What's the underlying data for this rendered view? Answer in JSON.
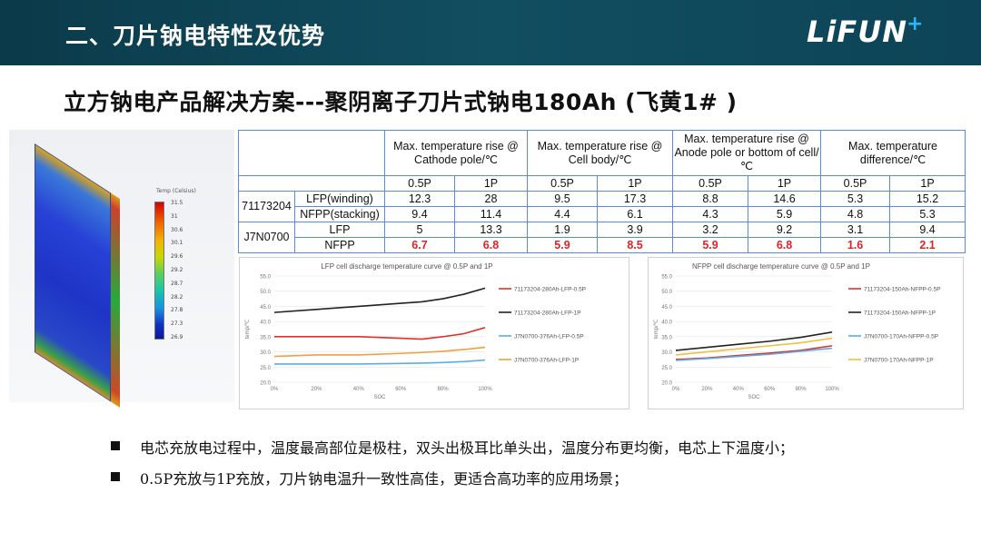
{
  "header": {
    "title": "二、刀片钠电特性及优势",
    "logo_text": "LiFUN",
    "logo_plus": "+"
  },
  "subtitle": "立方钠电产品解决方案---聚阴离子刀片式钠电180Ah (飞黄1# )",
  "simulation": {
    "legend_title": "Temp (Celsius)",
    "legend_ticks": [
      "31.5",
      "31",
      "30.6",
      "30.1",
      "29.6",
      "29.2",
      "28.7",
      "28.2",
      "27.8",
      "27.3",
      "26.9"
    ]
  },
  "table": {
    "headers": [
      "Max. temperature rise @ Cathode pole/℃",
      "Max. temperature rise @ Cell body/℃",
      "Max. temperature rise @ Anode pole or bottom of cell/℃",
      "Max. temperature difference/℃"
    ],
    "rates": [
      "0.5P",
      "1P",
      "0.5P",
      "1P",
      "0.5P",
      "1P",
      "0.5P",
      "1P"
    ],
    "groups": [
      {
        "model": "71173204",
        "rows": [
          {
            "type": "LFP(winding)",
            "values": [
              "12.3",
              "28",
              "9.5",
              "17.3",
              "8.8",
              "14.6",
              "5.3",
              "15.2"
            ],
            "highlight": false
          },
          {
            "type": "NFPP(stacking)",
            "values": [
              "9.4",
              "11.4",
              "4.4",
              "6.1",
              "4.3",
              "5.9",
              "4.8",
              "5.3"
            ],
            "highlight": false
          }
        ]
      },
      {
        "model": "J7N0700",
        "rows": [
          {
            "type": "LFP",
            "values": [
              "5",
              "13.3",
              "1.9",
              "3.9",
              "3.2",
              "9.2",
              "3.1",
              "9.4"
            ],
            "highlight": false
          },
          {
            "type": "NFPP",
            "values": [
              "6.7",
              "6.8",
              "5.9",
              "8.5",
              "5.9",
              "6.8",
              "1.6",
              "2.1"
            ],
            "highlight": true
          }
        ]
      }
    ]
  },
  "chart_data": [
    {
      "type": "line",
      "title": "LFP cell discharge temperature curve @ 0.5P and 1P",
      "xlabel": "SOC",
      "ylabel": "temp/℃",
      "x_ticks": [
        "0%",
        "20%",
        "40%",
        "60%",
        "80%",
        "100%"
      ],
      "y_ticks": [
        "20.0",
        "25.0",
        "30.0",
        "35.0",
        "40.0",
        "45.0",
        "50.0",
        "55.0"
      ],
      "ylim": [
        20,
        55
      ],
      "xlim": [
        0,
        100
      ],
      "legend_position": "right",
      "series": [
        {
          "name": "71173204-280Ah-LFP-0.5P",
          "color": "#e0302a",
          "x": [
            0,
            20,
            40,
            60,
            70,
            80,
            90,
            100
          ],
          "values": [
            35,
            35,
            35,
            34.5,
            34.2,
            35,
            36,
            38
          ]
        },
        {
          "name": "71173204-280Ah-LFP-1P",
          "color": "#222222",
          "x": [
            0,
            20,
            40,
            60,
            70,
            80,
            90,
            100
          ],
          "values": [
            43,
            44,
            45,
            46,
            46.5,
            47.5,
            49,
            51
          ]
        },
        {
          "name": "J7N0700-376Ah-LFP-0.5P",
          "color": "#5aaee8",
          "x": [
            0,
            20,
            40,
            60,
            70,
            80,
            90,
            100
          ],
          "values": [
            26,
            26,
            26,
            26.2,
            26.3,
            26.5,
            26.8,
            27.3
          ]
        },
        {
          "name": "J7N0700-376Ah-LFP-1P",
          "color": "#f0a040",
          "x": [
            0,
            20,
            40,
            60,
            70,
            80,
            90,
            100
          ],
          "values": [
            28.5,
            29,
            29,
            29.5,
            29.8,
            30.2,
            30.8,
            31.5
          ]
        }
      ]
    },
    {
      "type": "line",
      "title": "NFPP cell discharge temperature curve @ 0.5P and 1P",
      "xlabel": "SOC",
      "ylabel": "temp/℃",
      "x_ticks": [
        "0%",
        "20%",
        "40%",
        "60%",
        "80%",
        "100%"
      ],
      "y_ticks": [
        "20.0",
        "25.0",
        "30.0",
        "35.0",
        "40.0",
        "45.0",
        "50.0",
        "55.0"
      ],
      "ylim": [
        20,
        55
      ],
      "xlim": [
        0,
        100
      ],
      "legend_position": "right",
      "series": [
        {
          "name": "71173204-150Ah-NFPP-0.5P",
          "color": "#e0302a",
          "x": [
            0,
            20,
            40,
            60,
            80,
            100
          ],
          "values": [
            27.5,
            28,
            28.8,
            29.6,
            30.5,
            32
          ]
        },
        {
          "name": "71173204-150Ah-NFPP-1P",
          "color": "#222222",
          "x": [
            0,
            20,
            40,
            60,
            80,
            100
          ],
          "values": [
            30.5,
            31.5,
            32.5,
            33.5,
            34.8,
            36.5
          ]
        },
        {
          "name": "J7N0700-170Ah-NFPP-0.5P",
          "color": "#5aaee8",
          "x": [
            0,
            20,
            40,
            60,
            80,
            100
          ],
          "values": [
            27.2,
            27.8,
            28.5,
            29.2,
            30.2,
            31.2
          ]
        },
        {
          "name": "J7N0700-170Ah-NFPP-1P",
          "color": "#f0c040",
          "x": [
            0,
            20,
            40,
            60,
            80,
            100
          ],
          "values": [
            29,
            30,
            31,
            32,
            33,
            34.5
          ]
        }
      ]
    }
  ],
  "bullets": [
    "电芯充放电过程中，温度最高部位是极柱，双头出极耳比单头出，温度分布更均衡，电芯上下温度小；",
    "0.5P充放与1P充放，刀片钠电温升一致性高佳，更适合高功率的应用场景；"
  ]
}
